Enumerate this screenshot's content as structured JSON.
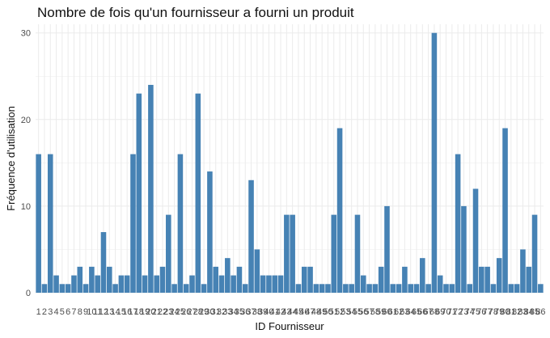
{
  "chart_data": {
    "type": "bar",
    "title": "Nombre de fois qu'un fournisseur a fourni un produit",
    "xlabel": "ID Fournisseur",
    "ylabel": "Fréquence d'utilisation",
    "ylim": [
      0,
      31
    ],
    "y_ticks": [
      0,
      10,
      20,
      30
    ],
    "grid": true,
    "legend": "none",
    "bar_color": "#4682B4",
    "grid_color": "#EBEBEB",
    "values": [
      16,
      1,
      16,
      2,
      1,
      1,
      2,
      3,
      1,
      3,
      2,
      7,
      3,
      1,
      2,
      2,
      16,
      23,
      2,
      24,
      2,
      3,
      9,
      1,
      16,
      1,
      2,
      23,
      1,
      14,
      3,
      2,
      4,
      2,
      3,
      1,
      13,
      5,
      2,
      2,
      2,
      2,
      9,
      9,
      1,
      3,
      3,
      1,
      1,
      1,
      9,
      19,
      1,
      1,
      9,
      2,
      1,
      1,
      3,
      10,
      1,
      1,
      3,
      1,
      1,
      4,
      1,
      30,
      2,
      1,
      1,
      16,
      10,
      1,
      12,
      3,
      3,
      1,
      4,
      19,
      1,
      1,
      5,
      3,
      9,
      1
    ],
    "categories": [
      "1",
      "2",
      "3",
      "4",
      "5",
      "6",
      "7",
      "8",
      "9",
      "10",
      "11",
      "12",
      "13",
      "14",
      "15",
      "16",
      "17",
      "18",
      "19",
      "20",
      "21",
      "22",
      "23",
      "24",
      "25",
      "26",
      "27",
      "28",
      "29",
      "30",
      "31",
      "32",
      "33",
      "34",
      "35",
      "36",
      "37",
      "38",
      "39",
      "40",
      "41",
      "42",
      "43",
      "44",
      "45",
      "46",
      "47",
      "48",
      "49",
      "50",
      "51",
      "52",
      "53",
      "54",
      "55",
      "56",
      "57",
      "58",
      "59",
      "60",
      "61",
      "62",
      "63",
      "64",
      "65",
      "66",
      "67",
      "68",
      "69",
      "70",
      "71",
      "72",
      "73",
      "74",
      "75",
      "76",
      "77",
      "78",
      "79",
      "80",
      "81",
      "82",
      "83",
      "84",
      "85",
      "86"
    ]
  }
}
